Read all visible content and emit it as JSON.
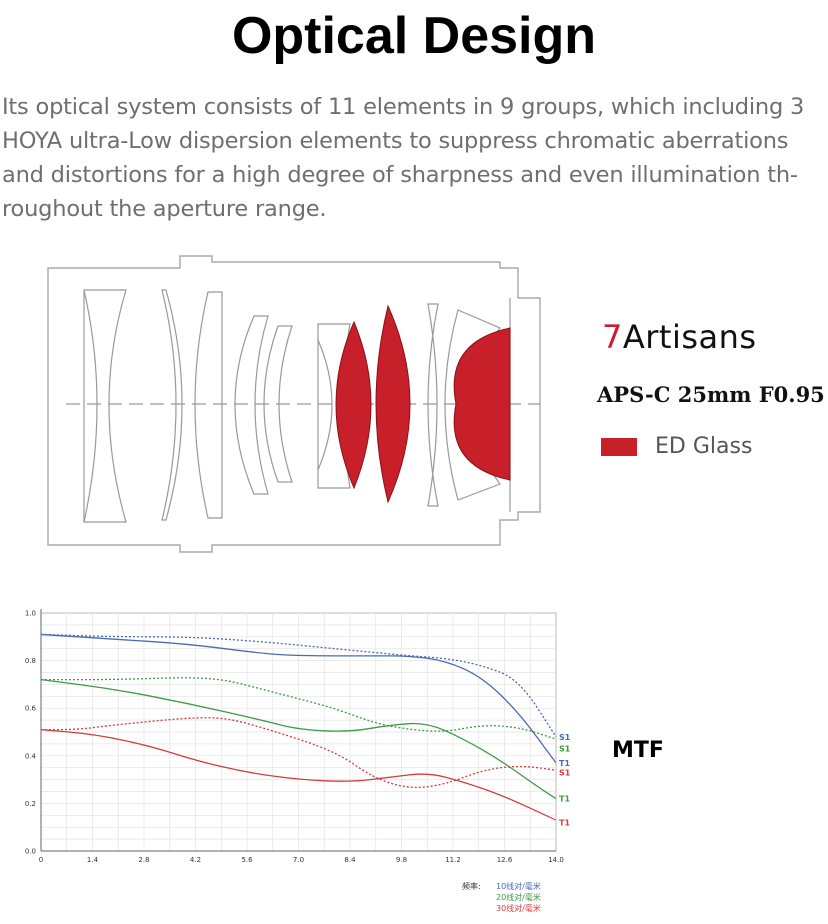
{
  "title": "Optical Design",
  "intro_lines": [
    "Its optical system consists of 11 elements in 9 groups, which including 3",
    "HOYA ultra-Low dispersion elements to suppress chromatic aberrations",
    "and distortions for a high degree of sharpness and even illumination th-",
    "roughout the aperture range."
  ],
  "brand": {
    "seven": "7",
    "name": "Artisans"
  },
  "model": "APS-C 25mm F0.95",
  "legend_ed": "ED Glass",
  "mtf_label": "MTF",
  "colors": {
    "ed_glass": "#c8202a",
    "blue": "#4a6ab0",
    "green": "#3e9a45",
    "red": "#d63c3c"
  },
  "chart_data": {
    "type": "line",
    "title": "",
    "xlabel": "",
    "ylabel": "",
    "xlim": [
      0,
      14
    ],
    "ylim": [
      0,
      1
    ],
    "x_ticks": [
      "0",
      "1.4",
      "2.8",
      "4.2",
      "5.6",
      "7.0",
      "8.4",
      "9.8",
      "11.2",
      "12.6",
      "14.0"
    ],
    "y_ticks": [
      "0.0",
      "0.2",
      "0.4",
      "0.6",
      "0.8",
      "1.0"
    ],
    "grid": true,
    "series": [
      {
        "name": "S1",
        "color": "#4a6ab0",
        "dashed": true,
        "points": [
          [
            0,
            0.91
          ],
          [
            2,
            0.9
          ],
          [
            4,
            0.9
          ],
          [
            6,
            0.88
          ],
          [
            8,
            0.85
          ],
          [
            10,
            0.82
          ],
          [
            11,
            0.81
          ],
          [
            12,
            0.78
          ],
          [
            13,
            0.72
          ],
          [
            14,
            0.48
          ]
        ]
      },
      {
        "name": "T1",
        "color": "#4a6ab0",
        "dashed": false,
        "points": [
          [
            0,
            0.91
          ],
          [
            2,
            0.89
          ],
          [
            4,
            0.87
          ],
          [
            6,
            0.83
          ],
          [
            7,
            0.82
          ],
          [
            9,
            0.82
          ],
          [
            10,
            0.82
          ],
          [
            11,
            0.8
          ],
          [
            12,
            0.73
          ],
          [
            13,
            0.58
          ],
          [
            14,
            0.37
          ]
        ]
      },
      {
        "name": "S1",
        "color": "#3e9a45",
        "dashed": true,
        "points": [
          [
            0,
            0.72
          ],
          [
            2,
            0.72
          ],
          [
            4,
            0.73
          ],
          [
            5,
            0.72
          ],
          [
            6,
            0.68
          ],
          [
            8,
            0.6
          ],
          [
            9,
            0.54
          ],
          [
            10,
            0.51
          ],
          [
            11,
            0.5
          ],
          [
            12,
            0.53
          ],
          [
            13,
            0.52
          ],
          [
            14,
            0.47
          ]
        ]
      },
      {
        "name": "T1",
        "color": "#3e9a45",
        "dashed": false,
        "points": [
          [
            0,
            0.72
          ],
          [
            2,
            0.68
          ],
          [
            4,
            0.62
          ],
          [
            6,
            0.55
          ],
          [
            7,
            0.51
          ],
          [
            8.4,
            0.5
          ],
          [
            9.5,
            0.53
          ],
          [
            10.5,
            0.54
          ],
          [
            11.5,
            0.47
          ],
          [
            12.5,
            0.38
          ],
          [
            13.5,
            0.27
          ],
          [
            14,
            0.22
          ]
        ]
      },
      {
        "name": "S1",
        "color": "#d63c3c",
        "dashed": true,
        "points": [
          [
            0,
            0.51
          ],
          [
            1,
            0.51
          ],
          [
            2,
            0.53
          ],
          [
            4,
            0.56
          ],
          [
            5,
            0.56
          ],
          [
            6,
            0.52
          ],
          [
            8,
            0.42
          ],
          [
            9,
            0.31
          ],
          [
            10,
            0.26
          ],
          [
            11,
            0.28
          ],
          [
            12,
            0.34
          ],
          [
            13,
            0.36
          ],
          [
            14,
            0.34
          ]
        ]
      },
      {
        "name": "T1",
        "color": "#d63c3c",
        "dashed": false,
        "points": [
          [
            0,
            0.51
          ],
          [
            1.5,
            0.49
          ],
          [
            3,
            0.44
          ],
          [
            4.2,
            0.38
          ],
          [
            5.6,
            0.33
          ],
          [
            7,
            0.3
          ],
          [
            8.4,
            0.29
          ],
          [
            9.5,
            0.31
          ],
          [
            10.5,
            0.33
          ],
          [
            11.5,
            0.29
          ],
          [
            12.6,
            0.23
          ],
          [
            14,
            0.13
          ]
        ]
      }
    ],
    "end_labels": [
      {
        "text": "S1",
        "color": "#4a6ab0",
        "y": 0.48
      },
      {
        "text": "S1",
        "color": "#3e9a45",
        "y": 0.43
      },
      {
        "text": "T1",
        "color": "#4a6ab0",
        "y": 0.37
      },
      {
        "text": "S1",
        "color": "#d63c3c",
        "y": 0.33
      },
      {
        "text": "T1",
        "color": "#3e9a45",
        "y": 0.22
      },
      {
        "text": "T1",
        "color": "#d63c3c",
        "y": 0.12
      }
    ],
    "key": {
      "prefix": "频率:",
      "entries": [
        {
          "text": "10线对/毫米",
          "color": "#4a6ab0"
        },
        {
          "text": "20线对/毫米",
          "color": "#3e9a45"
        },
        {
          "text": "30线对/毫米",
          "color": "#d63c3c"
        }
      ]
    }
  }
}
